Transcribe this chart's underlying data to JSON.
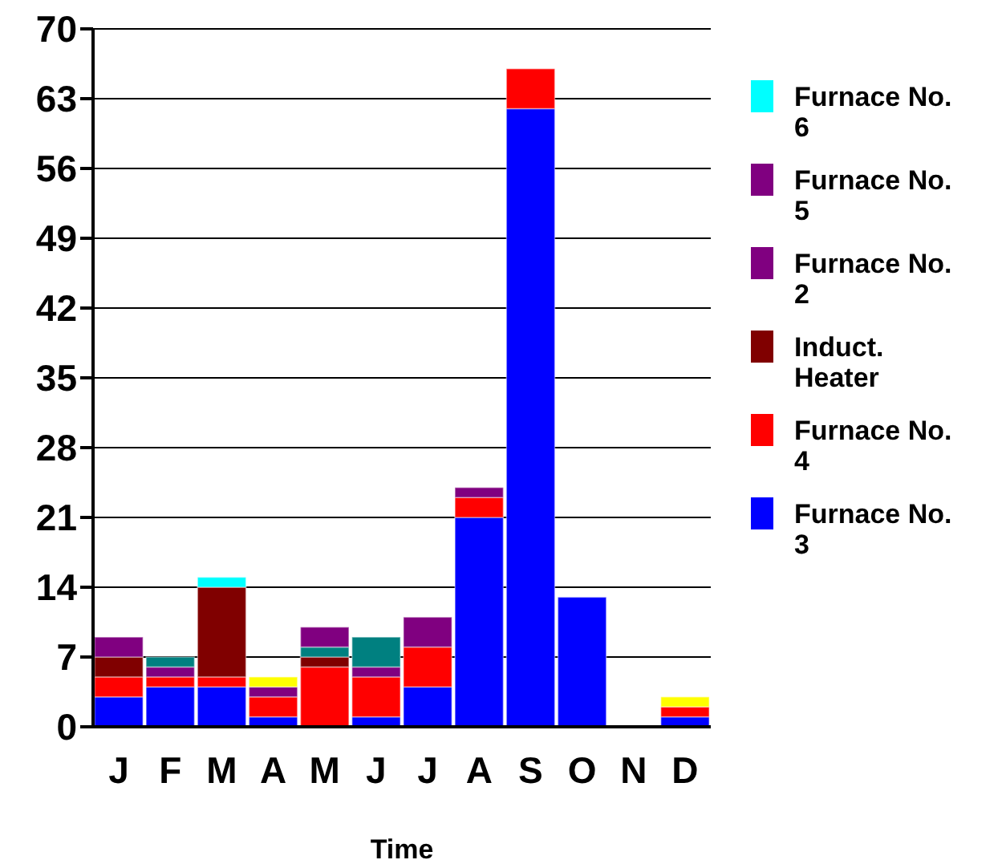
{
  "chart_data": {
    "type": "bar",
    "stacked": true,
    "xlabel": "Time",
    "categories": [
      "J",
      "F",
      "M",
      "A",
      "M",
      "J",
      "J",
      "A",
      "S",
      "O",
      "N",
      "D"
    ],
    "ylim": [
      0,
      70
    ],
    "yticks": [
      0,
      7,
      14,
      21,
      28,
      35,
      42,
      49,
      56,
      63,
      70
    ],
    "grid": "y",
    "legend": "right",
    "series": [
      {
        "name": "Furnace No. 3",
        "color": "#0000ff",
        "values": [
          3,
          4,
          4,
          1,
          0,
          1,
          4,
          21,
          62,
          13,
          0,
          1
        ]
      },
      {
        "name": "Furnace No. 4",
        "color": "#ff0000",
        "values": [
          2,
          1,
          1,
          2,
          6,
          4,
          4,
          2,
          4,
          0,
          0,
          1
        ]
      },
      {
        "name": "Induct. Heater",
        "color": "#800000",
        "values": [
          2,
          0,
          9,
          0,
          1,
          0,
          0,
          0,
          0,
          0,
          0,
          0
        ]
      },
      {
        "name": "Furnace No. 2",
        "color": "#800080",
        "values": [
          2,
          1,
          0,
          1,
          0,
          1,
          3,
          1,
          0,
          0,
          0,
          0
        ]
      },
      {
        "color": "#008080",
        "values": [
          0,
          1,
          0,
          0,
          1,
          3,
          0,
          0,
          0,
          0,
          0,
          0
        ]
      },
      {
        "name": "Furnace No. 5",
        "color": "#800080",
        "values": [
          0,
          0,
          0,
          0,
          2,
          0,
          0,
          0,
          0,
          0,
          0,
          0
        ]
      },
      {
        "color": "#ffff00",
        "values": [
          0,
          0,
          0,
          1,
          0,
          0,
          0,
          0,
          0,
          0,
          0,
          1
        ]
      },
      {
        "name": "Furnace No. 6",
        "color": "#00ffff",
        "values": [
          0,
          0,
          1,
          0,
          0,
          0,
          0,
          0,
          0,
          0,
          0,
          0
        ]
      }
    ]
  }
}
